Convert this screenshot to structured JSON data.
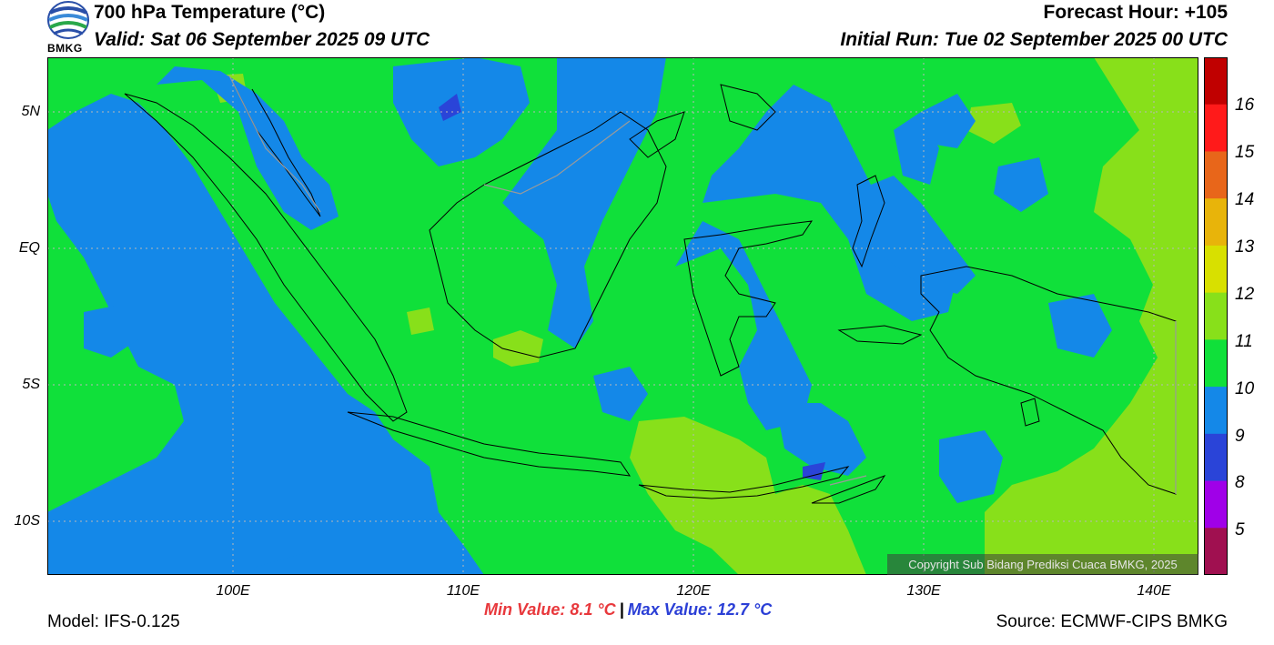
{
  "header": {
    "title": "700 hPa Temperature (°C)",
    "valid": "Valid: Sat 06 September 2025 09 UTC",
    "forecast_hour": "Forecast Hour: +105",
    "initial_run": "Initial Run: Tue 02 September 2025 00 UTC"
  },
  "logo": {
    "text": "BMKG"
  },
  "axes": {
    "lat_labels": [
      "5N",
      "EQ",
      "5S",
      "10S"
    ],
    "lon_labels": [
      "100E",
      "110E",
      "120E",
      "130E",
      "140E"
    ]
  },
  "colorbar": {
    "labels": [
      "16",
      "15",
      "14",
      "13",
      "12",
      "11",
      "10",
      "9",
      "8",
      "5"
    ],
    "colors": [
      "#c00000",
      "#ff1a1a",
      "#e8661a",
      "#e8b40a",
      "#d8e000",
      "#88e01a",
      "#10e03a",
      "#1488e8",
      "#2a44d8",
      "#a000e8",
      "#a01050"
    ]
  },
  "field_colors": {
    "green": "#10e03a",
    "blue": "#1488e8",
    "lightgreen": "#88e01a",
    "darkblue": "#2a44d8"
  },
  "footer": {
    "model": "Model: IFS-0.125",
    "source": "Source: ECMWF-CIPS BMKG",
    "min_value": "Min Value: 8.1 °C",
    "max_value": "Max Value: 12.7 °C",
    "separator": "|",
    "copyright": "Copyright Sub Bidang Prediksi Cuaca BMKG, 2025"
  }
}
